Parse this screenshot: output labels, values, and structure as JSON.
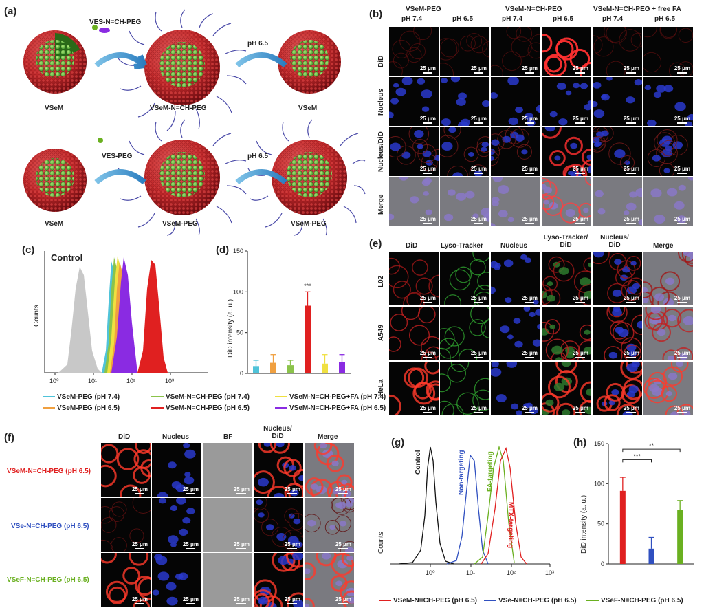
{
  "panel_labels": {
    "a": "(a)",
    "b": "(b)",
    "c": "(c)",
    "d": "(d)",
    "e": "(e)",
    "f": "(f)",
    "g": "(g)",
    "h": "(h)"
  },
  "panel_a": {
    "row1": {
      "left": "VSeM",
      "mid": "VSeM-N=CH-PEG",
      "right": "VSeM",
      "arrow1": "VES-N=CH-PEG",
      "arrow2": "pH 6.5"
    },
    "row2": {
      "left": "VSeM",
      "mid": "VSeM-PEG",
      "right": "VSeM-PEG",
      "arrow1": "VES-PEG",
      "arrow2": "pH 6.5"
    }
  },
  "panel_b": {
    "groups": [
      "VSeM-PEG",
      "VSeM-N=CH-PEG",
      "VSeM-N=CH-PEG + free FA"
    ],
    "ph": [
      "pH 7.4",
      "pH 6.5",
      "pH 7.4",
      "pH 6.5",
      "pH 7.4",
      "pH 6.5"
    ],
    "rows": [
      "DiD",
      "Nucleus",
      "Nucleus/DiD",
      "Merge"
    ],
    "scale": "25 μm"
  },
  "panel_c": {
    "control": "Control",
    "ylabel": "Counts",
    "ticks": [
      "10⁰",
      "10¹",
      "10²",
      "10³"
    ],
    "legend": [
      {
        "label": "VSeM-PEG (pH 7.4)",
        "color": "#4fc3d9"
      },
      {
        "label": "VSeM-N=CH-PEG (pH 7.4)",
        "color": "#8bc34a"
      },
      {
        "label": "VSeM-N=CH-PEG+FA (pH 7.4)",
        "color": "#f0e040"
      },
      {
        "label": "VSeM-PEG (pH 6.5)",
        "color": "#f0a040"
      },
      {
        "label": "VSeM-N=CH-PEG (pH 6.5)",
        "color": "#e02020"
      },
      {
        "label": "VSeM-N=CH-PEG+FA (pH 6.5)",
        "color": "#8a2be2"
      }
    ]
  },
  "panel_d": {
    "ylabel": "DiD intensity (a. u.)",
    "sig": "***",
    "chart_data": {
      "type": "bar",
      "categories": [
        "VSeM-PEG (pH 7.4)",
        "VSeM-PEG (pH 6.5)",
        "VSeM-N=CH-PEG (pH 7.4)",
        "VSeM-N=CH-PEG (pH 6.5)",
        "VSeM-N=CH-PEG+FA (pH 7.4)",
        "VSeM-N=CH-PEG+FA (pH 6.5)"
      ],
      "values": [
        9,
        13,
        10,
        83,
        12,
        14
      ],
      "errors": [
        7,
        10,
        6,
        17,
        11,
        9
      ],
      "colors": [
        "#4fc3d9",
        "#f0a040",
        "#8bc34a",
        "#e02020",
        "#f0e040",
        "#8a2be2"
      ],
      "ylim": [
        0,
        150
      ],
      "yticks": [
        "0",
        "50",
        "100",
        "150"
      ]
    }
  },
  "panel_e": {
    "cols": [
      "DiD",
      "Lyso-Tracker",
      "Nucleus",
      "Lyso-Tracker/ DiD",
      "Nucleus/ DiD",
      "Merge"
    ],
    "rows": [
      "L02",
      "A549",
      "HeLa"
    ],
    "scale": "25 μm"
  },
  "panel_f": {
    "cols": [
      "DiD",
      "Nucleus",
      "BF",
      "Nucleus/ DiD",
      "Merge"
    ],
    "rows": [
      {
        "label": "VSeM-N=CH-PEG (pH 6.5)",
        "color": "#e02020"
      },
      {
        "label": "VSe-N=CH-PEG (pH 6.5)",
        "color": "#3050c0"
      },
      {
        "label": "VSeF-N=CH-PEG (pH 6.5)",
        "color": "#6ab020"
      }
    ],
    "scale": "25 μm"
  },
  "panel_g": {
    "ylabel": "Counts",
    "ticks": [
      "10⁰",
      "10¹",
      "10²",
      "10³"
    ],
    "curves": [
      "Control",
      "Non-targeting",
      "FA-targeting",
      "MTX-targeting"
    ],
    "legend": [
      {
        "label": "VSeM-N=CH-PEG (pH 6.5)",
        "color": "#e02020"
      },
      {
        "label": "VSe-N=CH-PEG (pH 6.5)",
        "color": "#3050c0"
      },
      {
        "label": "VSeF-N=CH-PEG (pH 6.5)",
        "color": "#6ab020"
      }
    ]
  },
  "panel_h": {
    "ylabel": "DiD intensity (a. u.)",
    "sig1": "***",
    "sig2": "**",
    "chart_data": {
      "type": "bar",
      "categories": [
        "VSeM-N=CH-PEG (pH 6.5)",
        "VSe-N=CH-PEG (pH 6.5)",
        "VSeF-N=CH-PEG (pH 6.5)"
      ],
      "values": [
        91,
        19,
        67
      ],
      "errors": [
        17,
        14,
        12
      ],
      "colors": [
        "#e02020",
        "#3050c0",
        "#6ab020"
      ],
      "ylim": [
        0,
        150
      ],
      "yticks": [
        "0",
        "50",
        "100",
        "150"
      ]
    }
  }
}
